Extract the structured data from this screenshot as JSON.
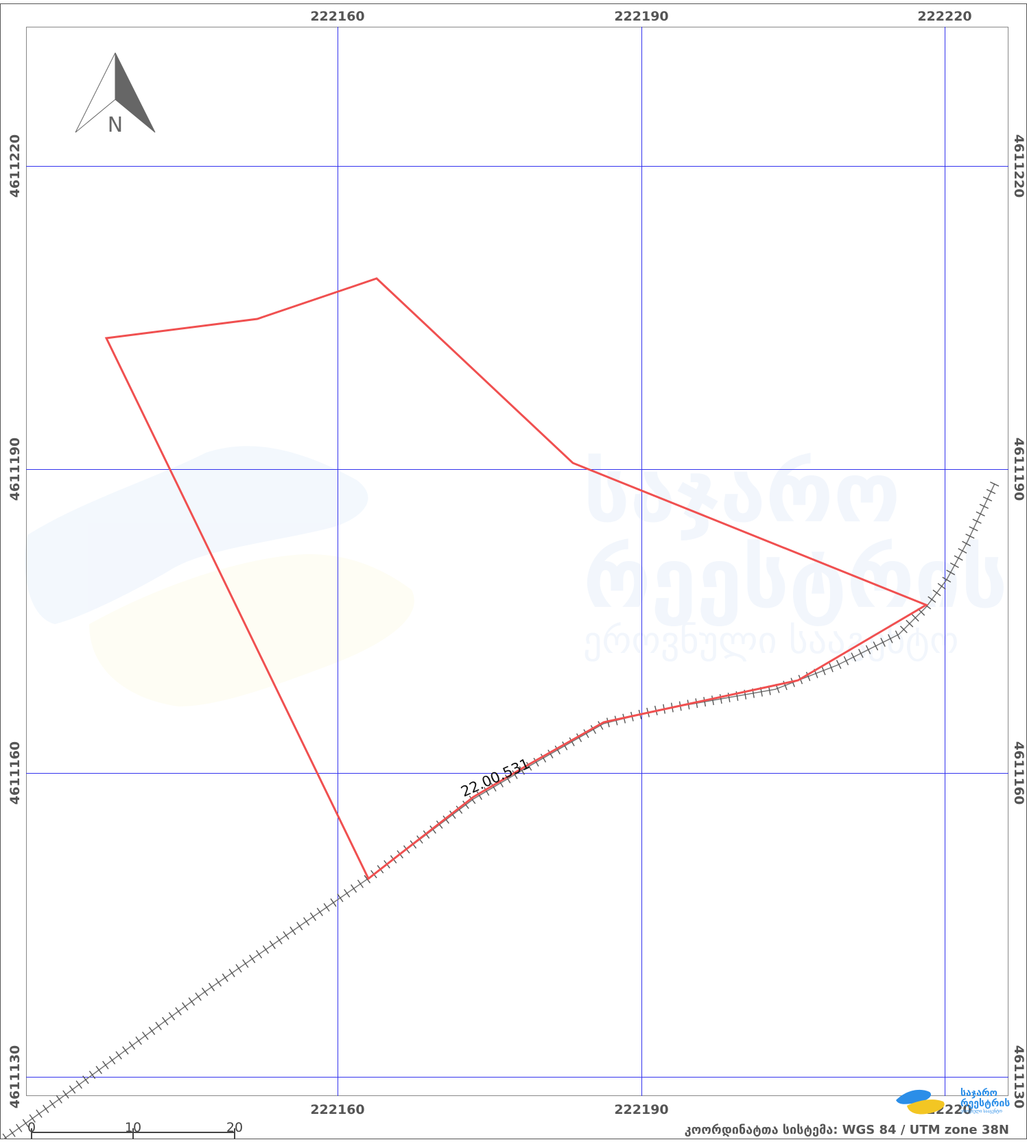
{
  "map": {
    "north_label": "N",
    "grid": {
      "easting_labels": [
        "222160",
        "222190",
        "222220"
      ],
      "northing_labels": [
        "4611220",
        "4611190",
        "4611160",
        "4611130"
      ]
    },
    "parcel_label": "22.00.531",
    "scale_bar": {
      "ticks": [
        "0",
        "10",
        "20"
      ]
    },
    "watermark": {
      "line1": "საჯარო",
      "line2": "რეესტრის",
      "line3": "ეროვნული სააგენტო"
    },
    "logo": {
      "line1": "საჯარო",
      "line2": "რეესტრის",
      "line3": "ეროვნული სააგენტო"
    },
    "coordinate_system": "კოორდინატთა სისტემა: WGS 84 / UTM zone 38N",
    "colors": {
      "grid": "#3333ee",
      "parcel": "#f05050",
      "railway": "#777777",
      "frame": "#888888"
    }
  }
}
